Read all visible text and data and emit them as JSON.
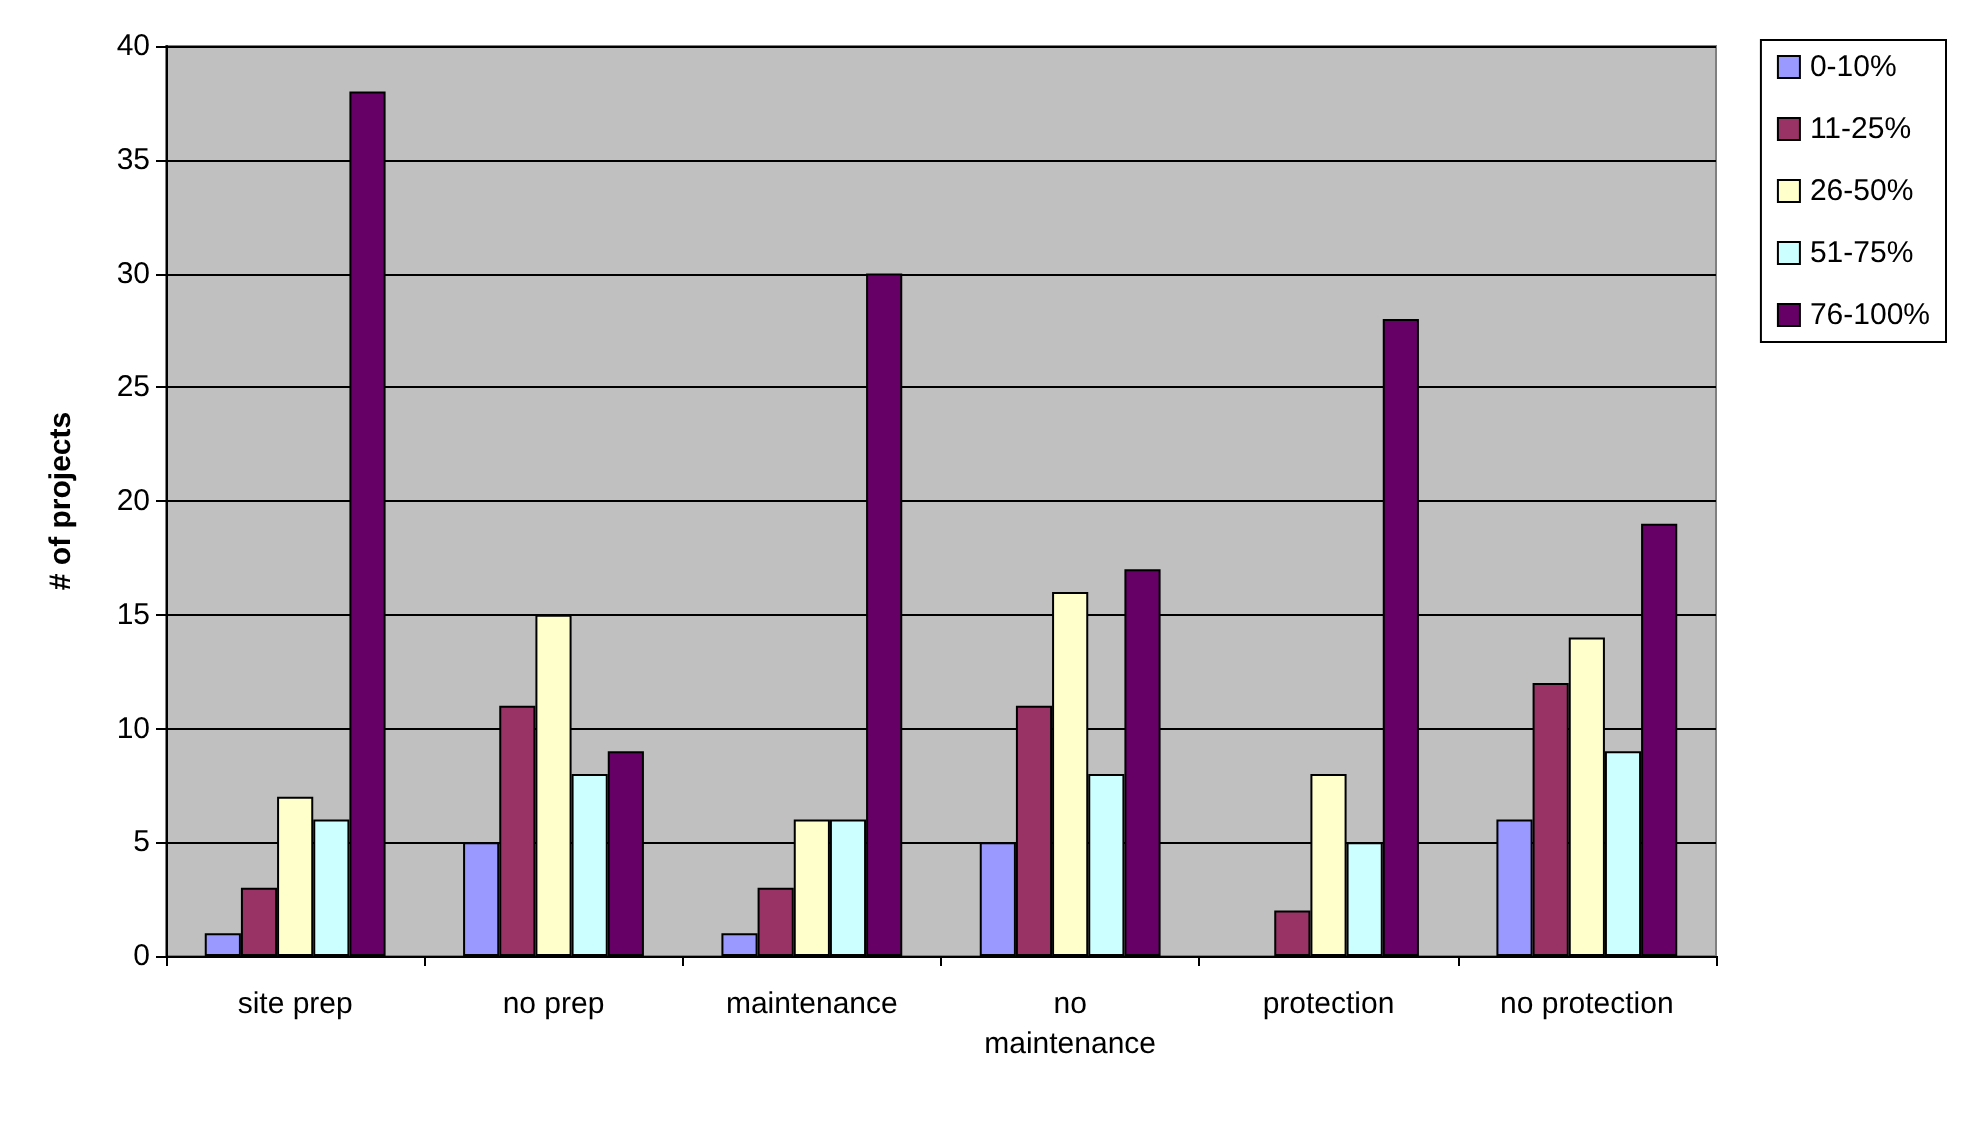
{
  "chart_data": {
    "type": "bar",
    "ylabel": "# of projects",
    "categories": [
      "site prep",
      "no prep",
      "maintenance",
      "no\nmaintenance",
      "protection",
      "no protection"
    ],
    "series": [
      {
        "name": "0-10%",
        "color": "#9999ff",
        "values": [
          1,
          5,
          1,
          5,
          null,
          6
        ]
      },
      {
        "name": "11-25%",
        "color": "#993366",
        "values": [
          3,
          11,
          3,
          11,
          2,
          12
        ]
      },
      {
        "name": "26-50%",
        "color": "#ffffcc",
        "values": [
          7,
          15,
          6,
          16,
          8,
          14
        ]
      },
      {
        "name": "51-75%",
        "color": "#ccffff",
        "values": [
          6,
          8,
          6,
          8,
          5,
          9
        ]
      },
      {
        "name": "76-100%",
        "color": "#660066",
        "values": [
          38,
          9,
          30,
          17,
          28,
          19
        ]
      }
    ],
    "ylim": [
      0,
      40
    ],
    "yticks": [
      0,
      5,
      10,
      15,
      20,
      25,
      30,
      35,
      40
    ],
    "grid": "y",
    "legend": "top right"
  }
}
